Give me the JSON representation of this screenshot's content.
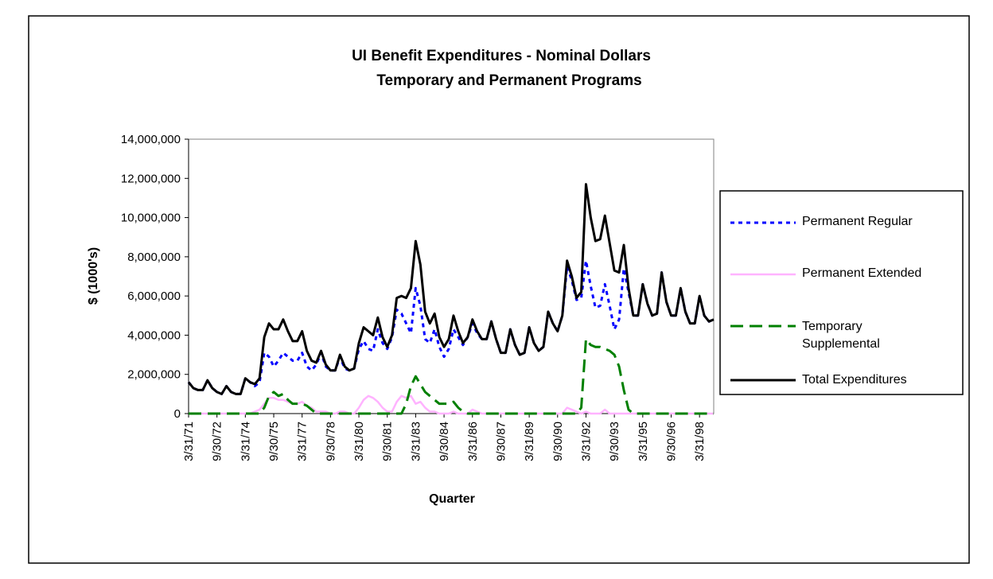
{
  "chart_data": {
    "type": "line",
    "title": "UI Benefit Expenditures - Nominal Dollars",
    "subtitle": "Temporary and Permanent Programs",
    "x_label": "Quarter",
    "y_label": "$ (1000's)",
    "categories": [
      "3/31/71",
      null,
      null,
      null,
      null,
      null,
      "9/30/72",
      null,
      null,
      null,
      null,
      null,
      "3/31/74",
      null,
      null,
      null,
      null,
      null,
      "9/30/75",
      null,
      null,
      null,
      null,
      null,
      "3/31/77",
      null,
      null,
      null,
      null,
      null,
      "9/30/78",
      null,
      null,
      null,
      null,
      null,
      "3/31/80",
      null,
      null,
      null,
      null,
      null,
      "9/30/81",
      null,
      null,
      null,
      null,
      null,
      "3/31/83",
      null,
      null,
      null,
      null,
      null,
      "9/30/84",
      null,
      null,
      null,
      null,
      null,
      "3/31/86",
      null,
      null,
      null,
      null,
      null,
      "9/30/87",
      null,
      null,
      null,
      null,
      null,
      "3/31/89",
      null,
      null,
      null,
      null,
      null,
      "9/30/90",
      null,
      null,
      null,
      null,
      null,
      "3/31/92",
      null,
      null,
      null,
      null,
      null,
      "9/30/93",
      null,
      null,
      null,
      null,
      null,
      "3/31/95",
      null,
      null,
      null,
      null,
      null,
      "9/30/96",
      null,
      null,
      null,
      null,
      null,
      "3/31/98",
      null,
      null,
      null
    ],
    "ylim": [
      0,
      14000000
    ],
    "yticks": [
      0,
      {
        "value": 2000000,
        "label": "2,000,000"
      },
      {
        "value": 4000000,
        "label": "4,000,000"
      },
      {
        "value": 6000000,
        "label": "6,000,000"
      },
      {
        "value": 8000000,
        "label": "8,000,000"
      },
      {
        "value": 10000000,
        "label": "10,000,000"
      },
      {
        "value": 12000000,
        "label": "12,000,000"
      },
      {
        "value": 14000000,
        "label": "14,000,000"
      }
    ],
    "grid": false,
    "legend": "right",
    "series": [
      {
        "name": "Permanent Regular",
        "color": "#0000ff",
        "line_style": "dotted",
        "values": [
          1600000.0,
          1300000.0,
          1200000.0,
          1200000.0,
          1700000.0,
          1300000.0,
          1100000.0,
          1000000.0,
          1400000.0,
          1100000.0,
          1000000.0,
          1000000.0,
          1800000.0,
          1600000.0,
          1400000.0,
          1600000.0,
          3100000.0,
          2900000.0,
          2400000.0,
          2700000.0,
          3100000.0,
          2900000.0,
          2700000.0,
          2700000.0,
          3100000.0,
          2400000.0,
          2200000.0,
          2500000.0,
          3100000.0,
          2400000.0,
          2200000.0,
          2200000.0,
          2900000.0,
          2300000.0,
          2200000.0,
          2300000.0,
          3300000.0,
          3700000.0,
          3300000.0,
          3200000.0,
          4300000.0,
          3600000.0,
          3300000.0,
          3900000.0,
          5300000.0,
          5100000.0,
          4600000.0,
          4100000.0,
          6400000.0,
          5500000.0,
          3800000.0,
          3600000.0,
          4300000.0,
          3400000.0,
          2900000.0,
          3300000.0,
          4300000.0,
          3900000.0,
          3500000.0,
          3900000.0,
          4600000.0,
          4100000.0,
          3800000.0,
          3800000.0,
          4700000.0,
          3800000.0,
          3100000.0,
          3100000.0,
          4300000.0,
          3500000.0,
          3000000.0,
          3100000.0,
          4400000.0,
          3600000.0,
          3200000.0,
          3400000.0,
          5200000.0,
          4600000.0,
          4200000.0,
          5000000.0,
          7500000.0,
          6800000.0,
          5800000.0,
          5900000.0,
          7800000.0,
          6500000.0,
          5400000.0,
          5500000.0,
          6600000.0,
          5500000.0,
          4300000.0,
          4800000.0,
          7400000.0,
          6200000.0,
          5000000.0,
          5000000.0,
          6600000.0,
          5600000.0,
          5000000.0,
          5100000.0,
          7200000.0,
          5700000.0,
          5000000.0,
          5000000.0,
          6400000.0,
          5200000.0,
          4600000.0,
          4600000.0,
          6000000.0,
          5000000.0,
          4700000.0,
          4800000.0
        ]
      },
      {
        "name": "Permanent Extended",
        "color": "#ffb3ff",
        "line_style": "solid",
        "values": [
          0,
          0,
          0,
          0,
          0,
          0,
          0,
          0,
          0,
          0,
          0,
          0,
          0,
          0,
          100000.0,
          200000.0,
          500000.0,
          800000.0,
          800000.0,
          700000.0,
          700000.0,
          600000.0,
          500000.0,
          500000.0,
          600000.0,
          400000.0,
          300000.0,
          100000.0,
          100000.0,
          100000.0,
          0,
          0,
          100000.0,
          100000.0,
          0,
          0,
          300000.0,
          700000.0,
          900000.0,
          800000.0,
          600000.0,
          300000.0,
          100000.0,
          100000.0,
          600000.0,
          900000.0,
          800000.0,
          900000.0,
          500000.0,
          600000.0,
          300000.0,
          100000.0,
          100000.0,
          0,
          0,
          0,
          100000.0,
          0,
          0,
          0,
          200000.0,
          100000.0,
          0,
          0,
          0,
          0,
          0,
          0,
          0,
          0,
          0,
          0,
          0,
          0,
          0,
          0,
          0,
          0,
          0,
          0,
          300000.0,
          200000.0,
          100000.0,
          0,
          100000.0,
          0,
          0,
          0,
          200000.0,
          0,
          0,
          0,
          0,
          0,
          0,
          0,
          0,
          0,
          0,
          0,
          0,
          0,
          0,
          0,
          0,
          0,
          0,
          0,
          0,
          0,
          0,
          0
        ]
      },
      {
        "name": "Temporary Supplemental",
        "color": "#008000",
        "line_style": "dashed",
        "values": [
          0,
          0,
          0,
          0,
          0,
          0,
          0,
          0,
          0,
          0,
          0,
          0,
          0,
          0,
          0,
          0,
          300000.0,
          900000.0,
          1100000.0,
          900000.0,
          1000000.0,
          700000.0,
          500000.0,
          500000.0,
          500000.0,
          400000.0,
          200000.0,
          0,
          0,
          0,
          0,
          0,
          0,
          0,
          0,
          0,
          0,
          0,
          0,
          0,
          0,
          0,
          0,
          0,
          0,
          0,
          500000.0,
          1400000.0,
          1900000.0,
          1500000.0,
          1100000.0,
          900000.0,
          700000.0,
          500000.0,
          500000.0,
          500000.0,
          600000.0,
          300000.0,
          100000.0,
          0,
          0,
          0,
          0,
          0,
          0,
          0,
          0,
          0,
          0,
          0,
          0,
          0,
          0,
          0,
          0,
          0,
          0,
          0,
          0,
          0,
          0,
          0,
          0,
          300000.0,
          3800000.0,
          3500000.0,
          3400000.0,
          3400000.0,
          3300000.0,
          3200000.0,
          3000000.0,
          2400000.0,
          1200000.0,
          200000.0,
          0,
          0,
          0,
          0,
          0,
          0,
          0,
          0,
          0,
          0,
          0,
          0,
          0,
          0,
          0,
          0,
          0,
          0
        ]
      },
      {
        "name": "Total Expenditures",
        "color": "#000000",
        "line_style": "solid",
        "values": [
          1600000.0,
          1300000.0,
          1200000.0,
          1200000.0,
          1700000.0,
          1300000.0,
          1100000.0,
          1000000.0,
          1400000.0,
          1100000.0,
          1000000.0,
          1000000.0,
          1800000.0,
          1600000.0,
          1500000.0,
          1800000.0,
          3900000.0,
          4600000.0,
          4300000.0,
          4300000.0,
          4800000.0,
          4200000.0,
          3700000.0,
          3700000.0,
          4200000.0,
          3200000.0,
          2700000.0,
          2600000.0,
          3200000.0,
          2500000.0,
          2200000.0,
          2200000.0,
          3000000.0,
          2400000.0,
          2200000.0,
          2300000.0,
          3600000.0,
          4400000.0,
          4200000.0,
          4000000.0,
          4900000.0,
          3900000.0,
          3400000.0,
          4000000.0,
          5900000.0,
          6000000.0,
          5900000.0,
          6400000.0,
          8800000.0,
          7600000.0,
          5200000.0,
          4600000.0,
          5100000.0,
          3900000.0,
          3400000.0,
          3800000.0,
          5000000.0,
          4200000.0,
          3600000.0,
          3900000.0,
          4800000.0,
          4200000.0,
          3800000.0,
          3800000.0,
          4700000.0,
          3800000.0,
          3100000.0,
          3100000.0,
          4300000.0,
          3500000.0,
          3000000.0,
          3100000.0,
          4400000.0,
          3600000.0,
          3200000.0,
          3400000.0,
          5200000.0,
          4600000.0,
          4200000.0,
          5000000.0,
          7800000.0,
          7000000.0,
          5900000.0,
          6200000.0,
          11700000.0,
          10000000.0,
          8800000.0,
          8900000.0,
          10100000.0,
          8700000.0,
          7300000.0,
          7200000.0,
          8600000.0,
          6400000.0,
          5000000.0,
          5000000.0,
          6600000.0,
          5600000.0,
          5000000.0,
          5100000.0,
          7200000.0,
          5700000.0,
          5000000.0,
          5000000.0,
          6400000.0,
          5200000.0,
          4600000.0,
          4600000.0,
          6000000.0,
          5000000.0,
          4700000.0,
          4800000.0
        ]
      }
    ]
  }
}
